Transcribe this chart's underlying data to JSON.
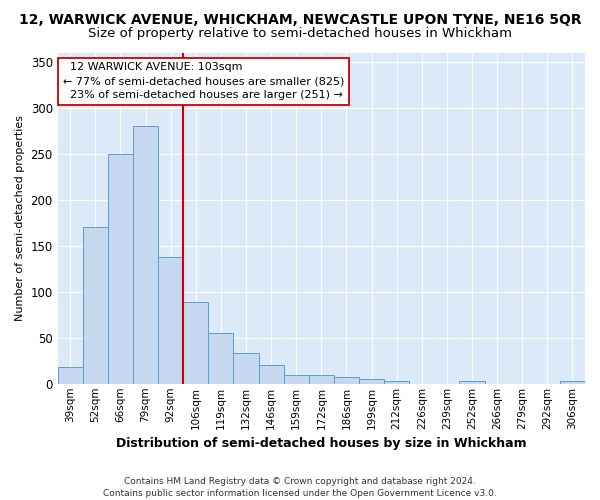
{
  "title": "12, WARWICK AVENUE, WHICKHAM, NEWCASTLE UPON TYNE, NE16 5QR",
  "subtitle": "Size of property relative to semi-detached houses in Whickham",
  "xlabel": "Distribution of semi-detached houses by size in Whickham",
  "ylabel": "Number of semi-detached properties",
  "footer": "Contains HM Land Registry data © Crown copyright and database right 2024.\nContains public sector information licensed under the Open Government Licence v3.0.",
  "categories": [
    "39sqm",
    "52sqm",
    "66sqm",
    "79sqm",
    "92sqm",
    "106sqm",
    "119sqm",
    "132sqm",
    "146sqm",
    "159sqm",
    "172sqm",
    "186sqm",
    "199sqm",
    "212sqm",
    "226sqm",
    "239sqm",
    "252sqm",
    "266sqm",
    "279sqm",
    "292sqm",
    "306sqm"
  ],
  "values": [
    18,
    170,
    250,
    280,
    138,
    89,
    55,
    33,
    20,
    9,
    10,
    7,
    5,
    3,
    0,
    0,
    3,
    0,
    0,
    0,
    3
  ],
  "bar_color": "#c5d8f0",
  "bar_edge_color": "#5a9fd4",
  "vline_x_index": 4.5,
  "vline_color": "#cc0000",
  "annotation_text": "  12 WARWICK AVENUE: 103sqm  \n← 77% of semi-detached houses are smaller (825)\n  23% of semi-detached houses are larger (251) →",
  "annotation_box_color": "#ffffff",
  "annotation_box_edge": "#cc0000",
  "ylim": [
    0,
    360
  ],
  "yticks": [
    0,
    50,
    100,
    150,
    200,
    250,
    300,
    350
  ],
  "bg_color": "#dce9f8",
  "fig_bg_color": "#ffffff",
  "title_fontsize": 10,
  "subtitle_fontsize": 9.5,
  "footer_fontsize": 6.5
}
